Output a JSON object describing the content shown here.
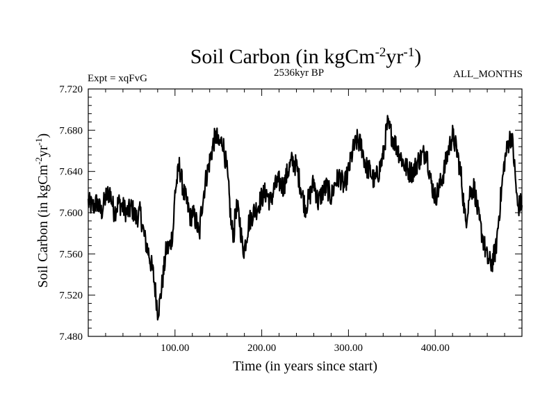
{
  "chart_data": {
    "type": "line",
    "title_main": "Soil Carbon (in kgCm",
    "title_sup1": "-2",
    "title_mid": "yr",
    "title_sup2": "-1",
    "title_end": ")",
    "subtitle": "2536kyr BP",
    "experiment": "Expt = xqFvG",
    "months": "ALL_MONTHS",
    "xlabel": "Time (in years since start)",
    "ylabel_main": "Soil Carbon (in kgCm",
    "ylabel_sup1": "-2",
    "ylabel_mid": "yr",
    "ylabel_sup2": "-1",
    "ylabel_end": ")",
    "xlim": [
      0,
      500
    ],
    "ylim": [
      7.48,
      7.72
    ],
    "xticks": [
      100,
      200,
      300,
      400
    ],
    "xtick_labels": [
      "100.00",
      "200.00",
      "300.00",
      "400.00"
    ],
    "yticks": [
      7.48,
      7.52,
      7.56,
      7.6,
      7.64,
      7.68,
      7.72
    ],
    "ytick_labels": [
      "7.480",
      "7.520",
      "7.560",
      "7.600",
      "7.640",
      "7.680",
      "7.720"
    ],
    "series": [
      {
        "name": "Soil Carbon",
        "color": "#000000",
        "x": [
          0,
          5,
          10,
          15,
          20,
          25,
          30,
          35,
          40,
          45,
          50,
          55,
          60,
          62,
          65,
          70,
          75,
          78,
          80,
          82,
          85,
          88,
          90,
          92,
          95,
          98,
          100,
          103,
          105,
          110,
          115,
          118,
          120,
          125,
          128,
          130,
          135,
          140,
          145,
          148,
          150,
          155,
          160,
          163,
          165,
          168,
          170,
          173,
          175,
          178,
          180,
          185,
          190,
          195,
          200,
          205,
          210,
          215,
          220,
          225,
          230,
          235,
          240,
          245,
          250,
          255,
          260,
          265,
          270,
          275,
          280,
          285,
          290,
          295,
          300,
          305,
          310,
          315,
          320,
          325,
          330,
          335,
          340,
          343,
          345,
          350,
          355,
          360,
          365,
          370,
          375,
          380,
          385,
          390,
          395,
          400,
          405,
          410,
          415,
          420,
          425,
          430,
          435,
          440,
          445,
          450,
          455,
          460,
          465,
          470,
          475,
          480,
          485,
          488,
          490,
          495,
          500
        ],
        "values": [
          7.61,
          7.605,
          7.61,
          7.6,
          7.615,
          7.62,
          7.6,
          7.61,
          7.605,
          7.6,
          7.605,
          7.595,
          7.6,
          7.59,
          7.575,
          7.56,
          7.54,
          7.52,
          7.505,
          7.51,
          7.53,
          7.55,
          7.565,
          7.565,
          7.57,
          7.585,
          7.62,
          7.635,
          7.645,
          7.62,
          7.605,
          7.595,
          7.6,
          7.59,
          7.575,
          7.6,
          7.63,
          7.65,
          7.67,
          7.675,
          7.665,
          7.67,
          7.64,
          7.61,
          7.585,
          7.58,
          7.605,
          7.6,
          7.59,
          7.565,
          7.565,
          7.59,
          7.6,
          7.605,
          7.615,
          7.62,
          7.61,
          7.625,
          7.63,
          7.625,
          7.64,
          7.65,
          7.645,
          7.625,
          7.605,
          7.615,
          7.63,
          7.61,
          7.62,
          7.625,
          7.615,
          7.63,
          7.635,
          7.625,
          7.64,
          7.66,
          7.67,
          7.665,
          7.645,
          7.64,
          7.63,
          7.64,
          7.655,
          7.675,
          7.685,
          7.675,
          7.665,
          7.655,
          7.645,
          7.64,
          7.64,
          7.65,
          7.655,
          7.66,
          7.63,
          7.615,
          7.625,
          7.64,
          7.66,
          7.675,
          7.66,
          7.635,
          7.59,
          7.62,
          7.625,
          7.595,
          7.575,
          7.555,
          7.55,
          7.565,
          7.61,
          7.65,
          7.67,
          7.675,
          7.66,
          7.605,
          7.61
        ]
      }
    ]
  }
}
